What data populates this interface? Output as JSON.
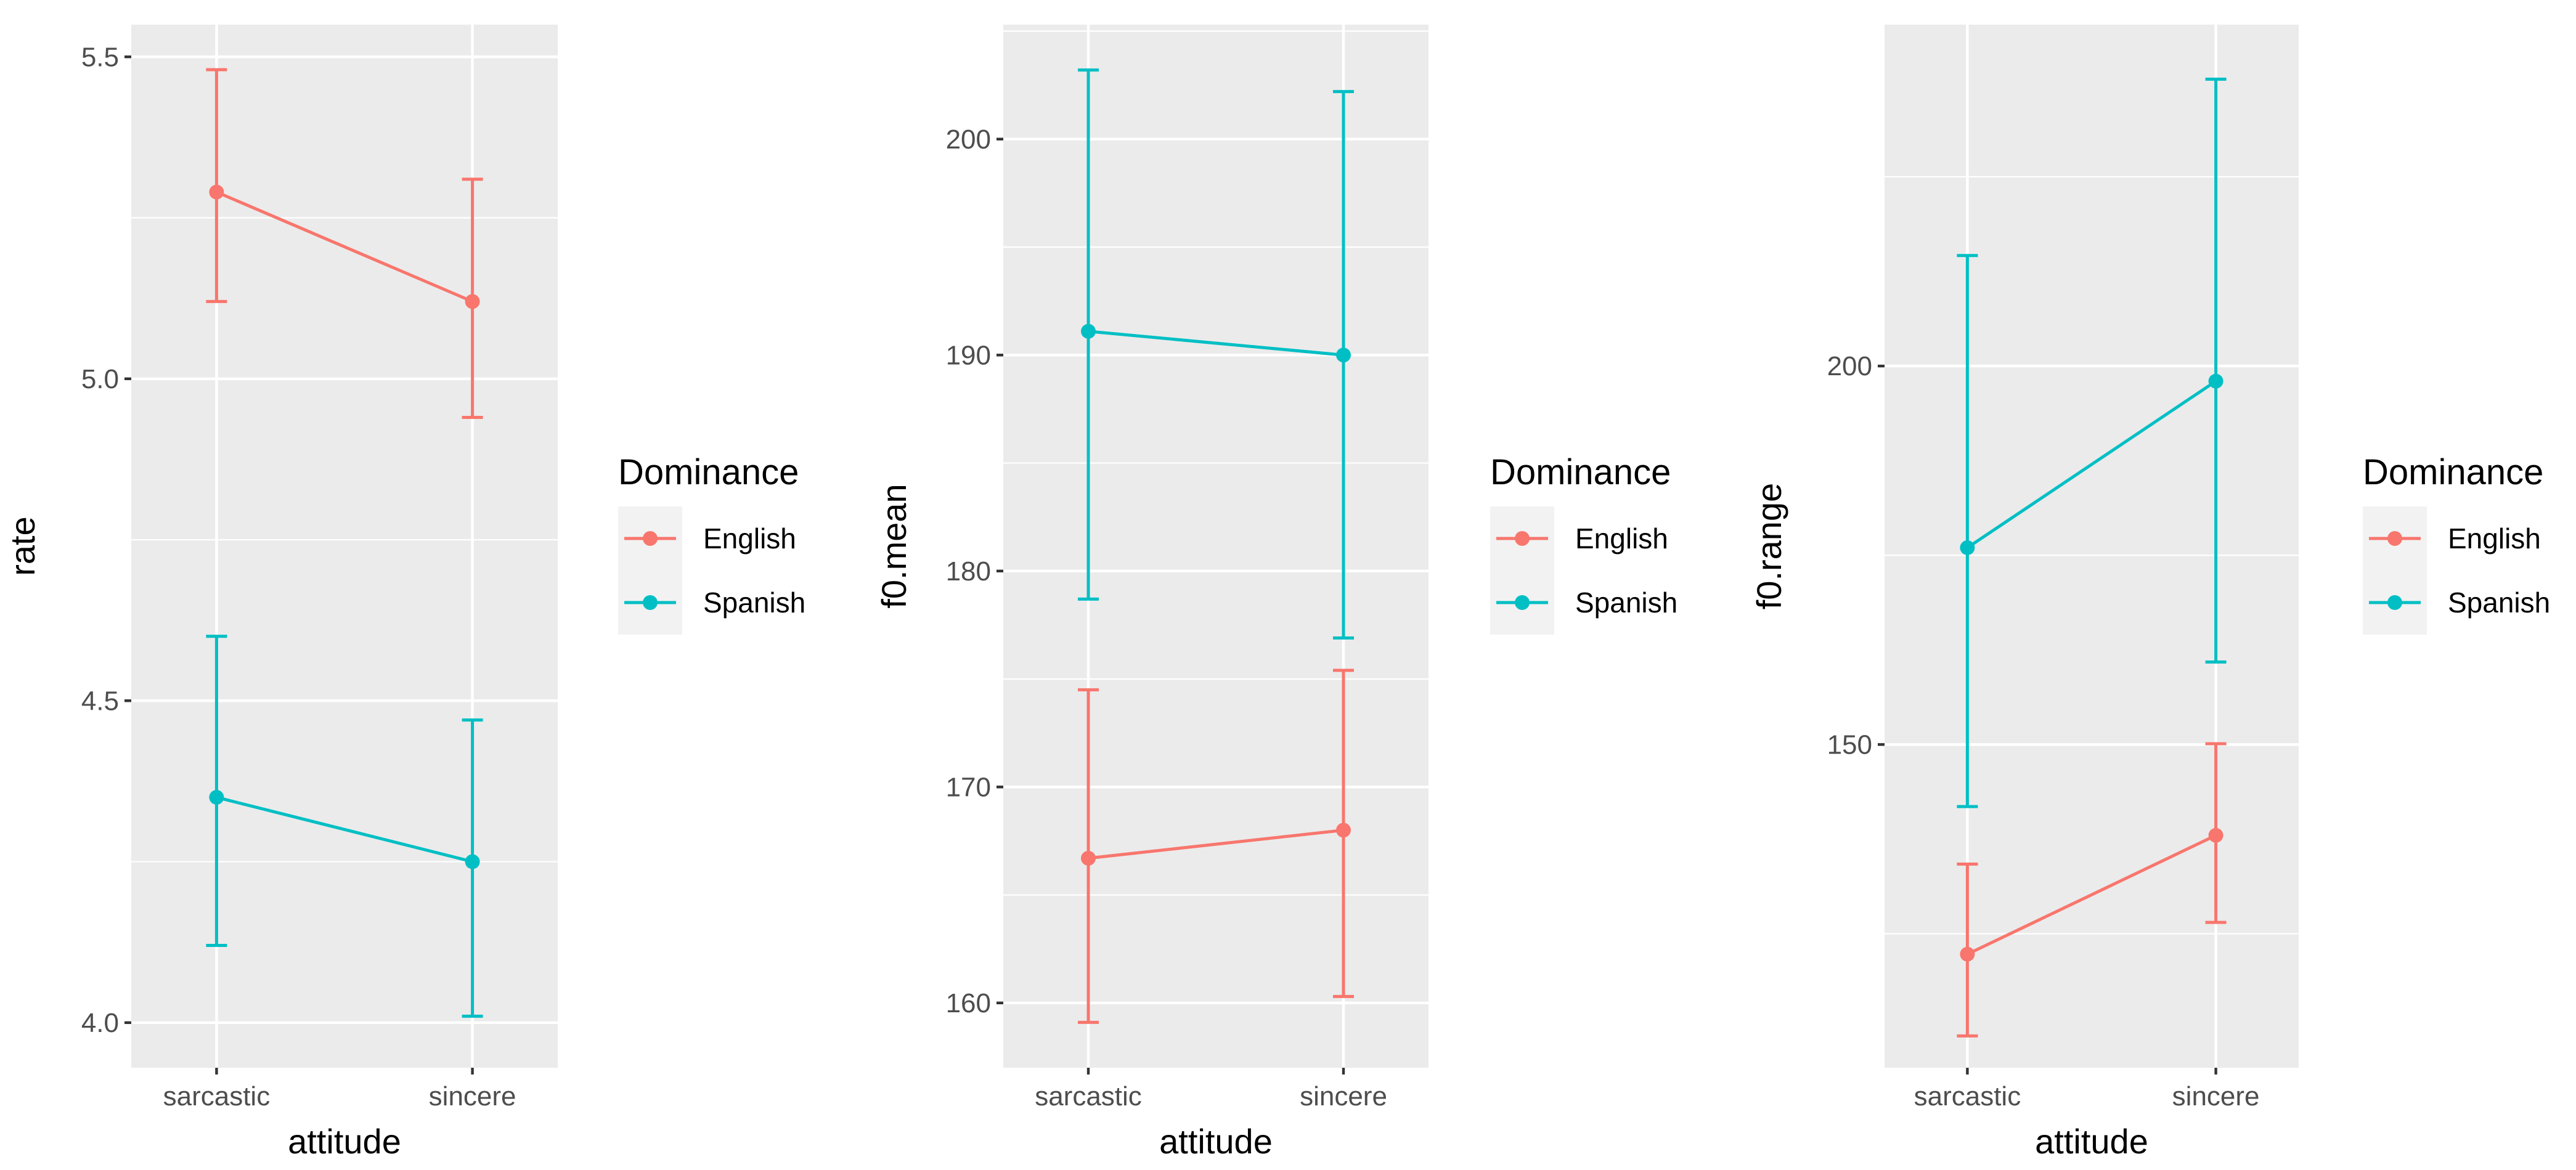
{
  "colors": {
    "panel_bg": "#EBEBEB",
    "grid_major": "#FFFFFF",
    "tick_text": "#4D4D4D",
    "English": "#F8766D",
    "Spanish": "#00BFC4"
  },
  "chart_data": [
    {
      "type": "line",
      "xlabel": "attitude",
      "ylabel": "rate",
      "categories": [
        "sarcastic",
        "sincere"
      ],
      "ylim": [
        3.93,
        5.55
      ],
      "yticks": [
        4.0,
        4.5,
        5.0,
        5.5
      ],
      "ytick_labels": [
        "4.0",
        "4.5",
        "5.0",
        "5.5"
      ],
      "grid": true,
      "legend": {
        "title": "Dominance",
        "position": "right"
      },
      "series": [
        {
          "name": "English",
          "values": [
            5.29,
            5.12
          ],
          "lower": [
            5.12,
            4.94
          ],
          "upper": [
            5.48,
            5.31
          ]
        },
        {
          "name": "Spanish",
          "values": [
            4.35,
            4.25
          ],
          "lower": [
            4.12,
            4.01
          ],
          "upper": [
            4.6,
            4.47
          ]
        }
      ]
    },
    {
      "type": "line",
      "xlabel": "attitude",
      "ylabel": "f0.mean",
      "categories": [
        "sarcastic",
        "sincere"
      ],
      "ylim": [
        157,
        205.3
      ],
      "yticks": [
        160,
        170,
        180,
        190,
        200
      ],
      "ytick_labels": [
        "160",
        "170",
        "180",
        "190",
        "200"
      ],
      "grid": true,
      "legend": {
        "title": "Dominance",
        "position": "right"
      },
      "series": [
        {
          "name": "English",
          "values": [
            166.7,
            168.0
          ],
          "lower": [
            159.1,
            160.3
          ],
          "upper": [
            174.5,
            175.4
          ]
        },
        {
          "name": "Spanish",
          "values": [
            191.1,
            190.0
          ],
          "lower": [
            178.7,
            176.9
          ],
          "upper": [
            203.2,
            202.2
          ]
        }
      ]
    },
    {
      "type": "line",
      "xlabel": "attitude",
      "ylabel": "f0.range",
      "categories": [
        "sarcastic",
        "sincere"
      ],
      "ylim": [
        107.3,
        245.1
      ],
      "yticks": [
        150,
        200
      ],
      "ytick_labels": [
        "150",
        "200"
      ],
      "grid": true,
      "legend": {
        "title": "Dominance",
        "position": "right"
      },
      "series": [
        {
          "name": "English",
          "values": [
            122.3,
            138.0
          ],
          "lower": [
            111.5,
            126.5
          ],
          "upper": [
            134.2,
            150.1
          ]
        },
        {
          "name": "Spanish",
          "values": [
            176.0,
            198.0
          ],
          "lower": [
            141.8,
            160.9
          ],
          "upper": [
            214.6,
            237.9
          ]
        }
      ]
    }
  ]
}
